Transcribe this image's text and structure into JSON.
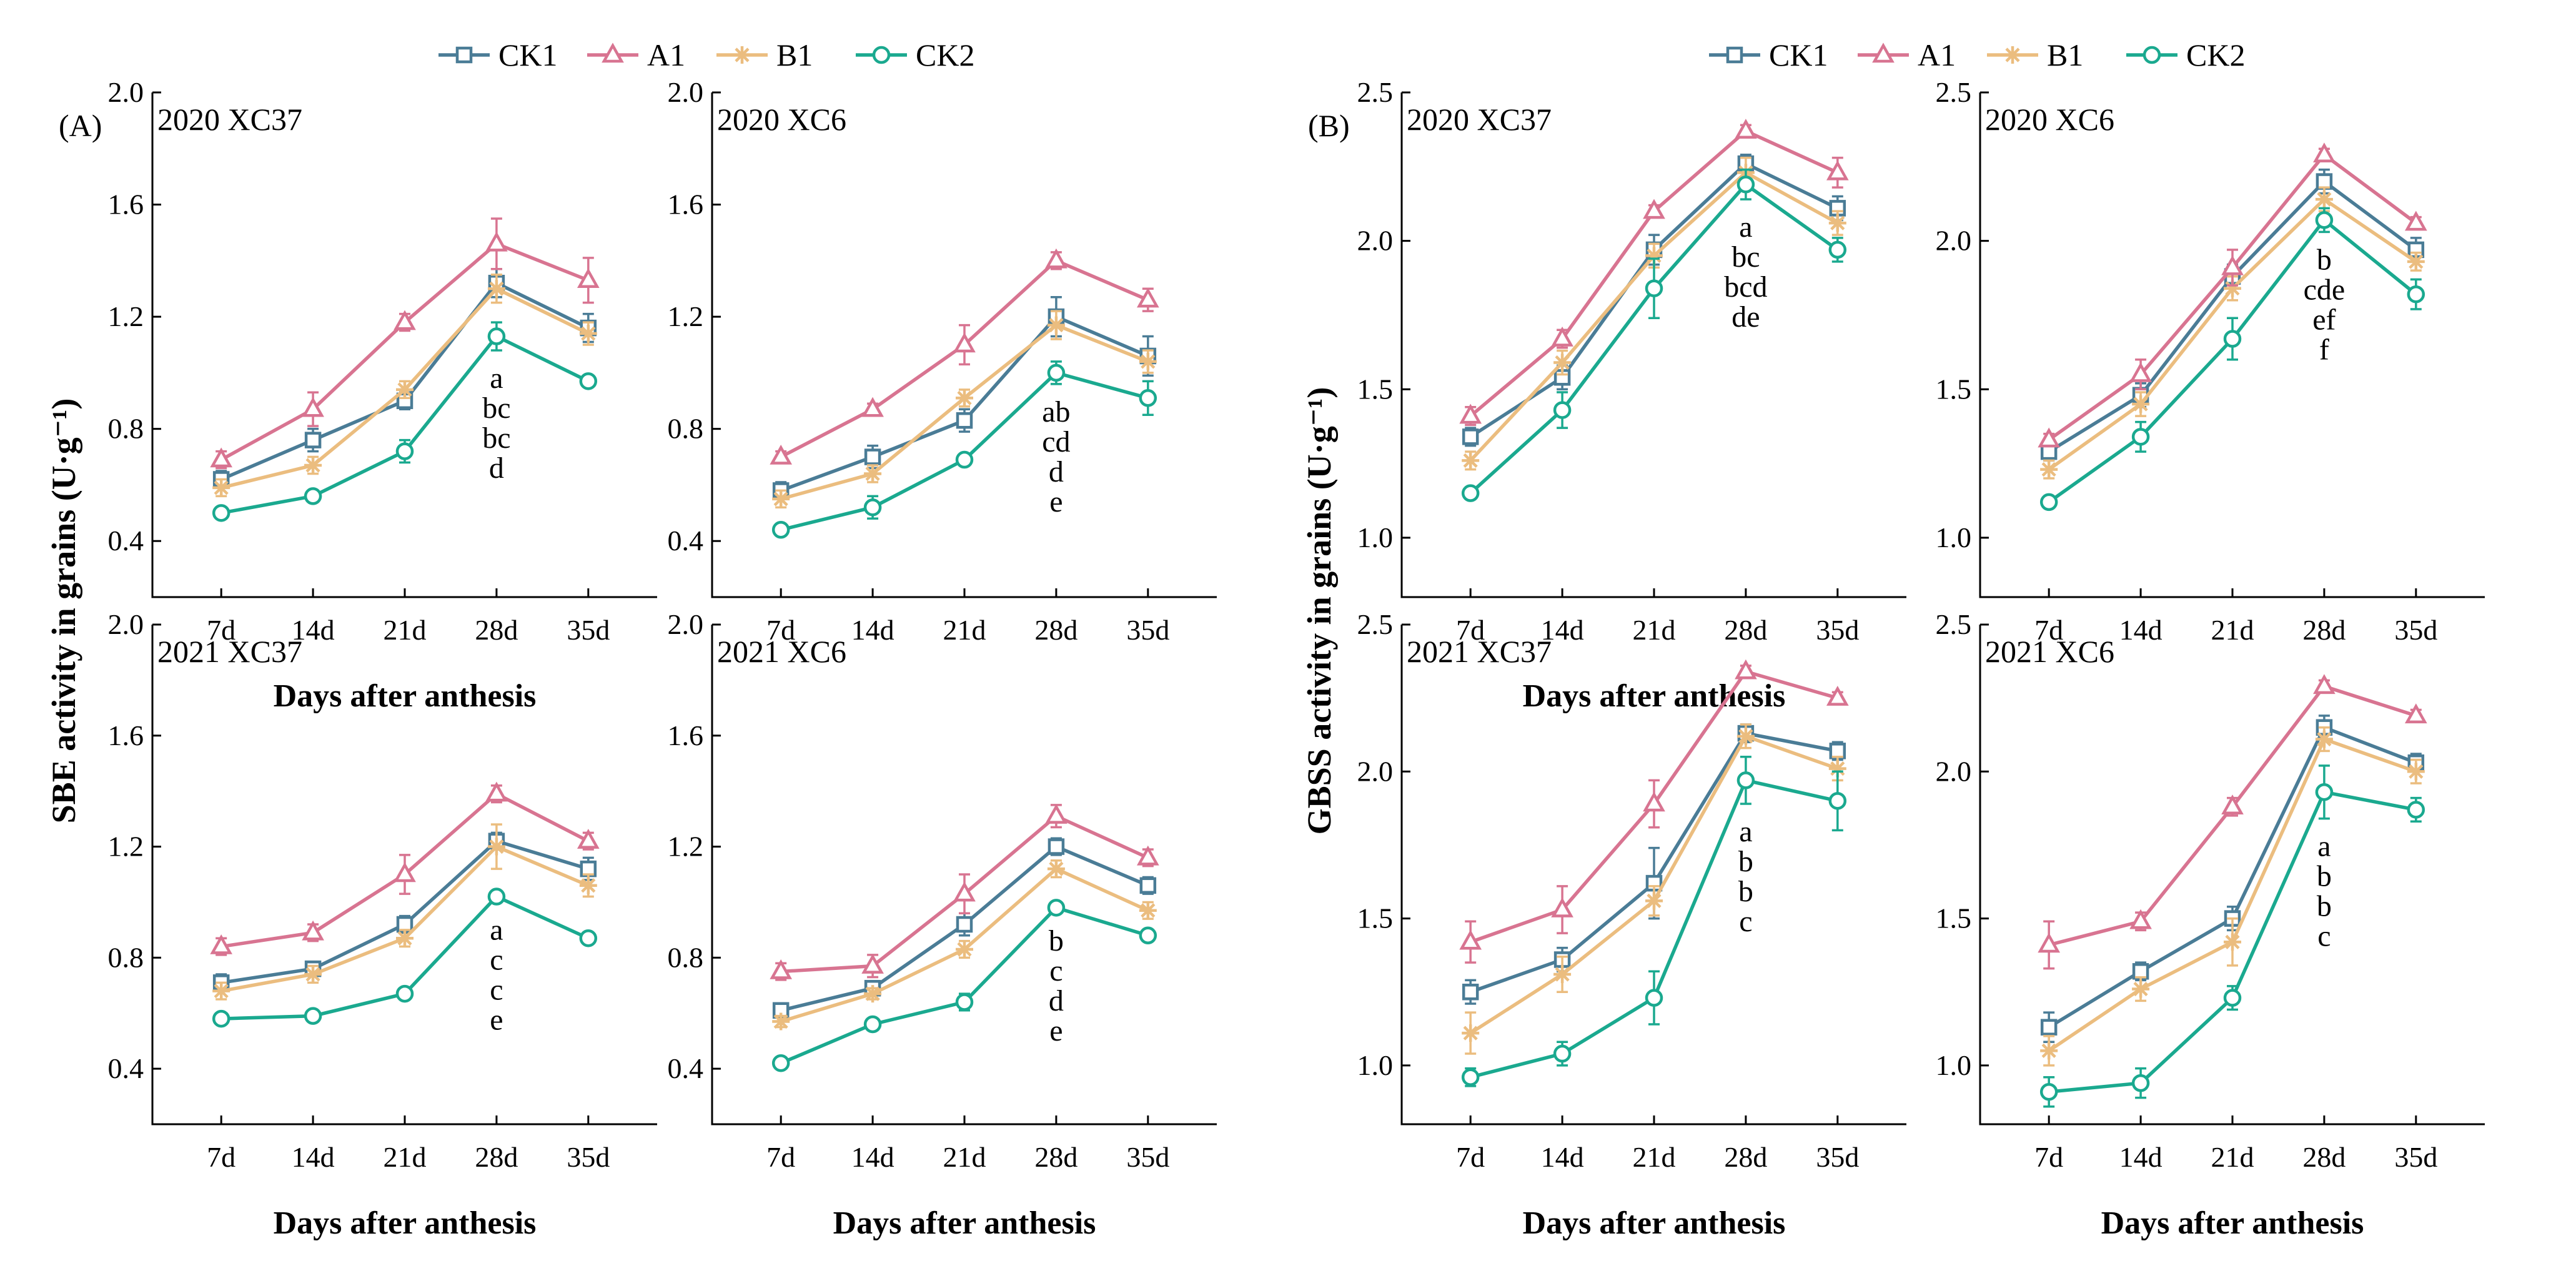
{
  "colors": {
    "CK1": "#4a7c96",
    "A1": "#d87491",
    "B1": "#ebbd7f",
    "CK2": "#1aa98f"
  },
  "legend": [
    "CK1",
    "A1",
    "B1",
    "CK2"
  ],
  "chart_data": [
    {
      "figure": "A",
      "type": "line",
      "title": "2020 XC37",
      "panel_label": "(A)",
      "ylabel": "SBE activity in grains (U·g⁻¹)",
      "xlabel": "Days after anthesis",
      "categories": [
        "7d",
        "14d",
        "21d",
        "28d",
        "35d"
      ],
      "ylim": [
        0.2,
        2.0
      ],
      "yticks": [
        "0.4",
        "0.8",
        "1.2",
        "1.6",
        "2.0"
      ],
      "series": [
        {
          "name": "CK1",
          "values": [
            0.62,
            0.76,
            0.9,
            1.32,
            1.16
          ],
          "err": [
            0.03,
            0.04,
            0.03,
            0.05,
            0.05
          ]
        },
        {
          "name": "A1",
          "values": [
            0.69,
            0.87,
            1.18,
            1.46,
            1.33
          ],
          "err": [
            0.03,
            0.06,
            0.03,
            0.09,
            0.08
          ]
        },
        {
          "name": "B1",
          "values": [
            0.59,
            0.67,
            0.94,
            1.3,
            1.14
          ],
          "err": [
            0.03,
            0.03,
            0.03,
            0.05,
            0.04
          ]
        },
        {
          "name": "CK2",
          "values": [
            0.5,
            0.56,
            0.72,
            1.13,
            0.97
          ],
          "err": [
            0.02,
            0.02,
            0.04,
            0.05,
            0.02
          ]
        }
      ],
      "letters": {
        "category": "28d",
        "labels": [
          "a",
          "bc",
          "bc",
          "d"
        ]
      }
    },
    {
      "figure": "A",
      "type": "line",
      "title": "2020 XC6",
      "categories": [
        "7d",
        "14d",
        "21d",
        "28d",
        "35d"
      ],
      "ylim": [
        0.2,
        2.0
      ],
      "yticks": [
        "0.4",
        "0.8",
        "1.2",
        "1.6",
        "2.0"
      ],
      "series": [
        {
          "name": "CK1",
          "values": [
            0.58,
            0.7,
            0.83,
            1.2,
            1.06
          ],
          "err": [
            0.03,
            0.04,
            0.04,
            0.07,
            0.07
          ]
        },
        {
          "name": "A1",
          "values": [
            0.7,
            0.87,
            1.1,
            1.4,
            1.26
          ],
          "err": [
            0.02,
            0.02,
            0.07,
            0.03,
            0.04
          ]
        },
        {
          "name": "B1",
          "values": [
            0.55,
            0.64,
            0.91,
            1.17,
            1.04
          ],
          "err": [
            0.03,
            0.03,
            0.03,
            0.05,
            0.04
          ]
        },
        {
          "name": "CK2",
          "values": [
            0.44,
            0.52,
            0.69,
            1.0,
            0.91
          ],
          "err": [
            0.02,
            0.04,
            0.02,
            0.04,
            0.06
          ]
        }
      ],
      "letters": {
        "category": "28d",
        "labels": [
          "ab",
          "cd",
          "d",
          "e"
        ]
      }
    },
    {
      "figure": "A",
      "type": "line",
      "title": "2021 XC37",
      "ylabel": "SBE activity in grains (U·g⁻¹)",
      "xlabel": "Days after anthesis",
      "categories": [
        "7d",
        "14d",
        "21d",
        "28d",
        "35d"
      ],
      "ylim": [
        0.2,
        2.0
      ],
      "yticks": [
        "0.4",
        "0.8",
        "1.2",
        "1.6",
        "2.0"
      ],
      "series": [
        {
          "name": "CK1",
          "values": [
            0.71,
            0.76,
            0.92,
            1.22,
            1.12
          ],
          "err": [
            0.03,
            0.02,
            0.03,
            0.03,
            0.04
          ]
        },
        {
          "name": "A1",
          "values": [
            0.84,
            0.89,
            1.1,
            1.39,
            1.22
          ],
          "err": [
            0.03,
            0.03,
            0.07,
            0.03,
            0.03
          ]
        },
        {
          "name": "B1",
          "values": [
            0.68,
            0.74,
            0.87,
            1.2,
            1.06
          ],
          "err": [
            0.03,
            0.03,
            0.03,
            0.08,
            0.04
          ]
        },
        {
          "name": "CK2",
          "values": [
            0.58,
            0.59,
            0.67,
            1.02,
            0.87
          ],
          "err": [
            0.02,
            0.02,
            0.02,
            0.02,
            0.02
          ]
        }
      ],
      "letters": {
        "category": "28d",
        "labels": [
          "a",
          "c",
          "c",
          "e"
        ]
      }
    },
    {
      "figure": "A",
      "type": "line",
      "title": "2021 XC6",
      "xlabel": "Days after anthesis",
      "categories": [
        "7d",
        "14d",
        "21d",
        "28d",
        "35d"
      ],
      "ylim": [
        0.2,
        2.0
      ],
      "yticks": [
        "0.4",
        "0.8",
        "1.2",
        "1.6",
        "2.0"
      ],
      "series": [
        {
          "name": "CK1",
          "values": [
            0.61,
            0.69,
            0.92,
            1.2,
            1.06
          ],
          "err": [
            0.02,
            0.02,
            0.04,
            0.03,
            0.03
          ]
        },
        {
          "name": "A1",
          "values": [
            0.75,
            0.77,
            1.03,
            1.31,
            1.16
          ],
          "err": [
            0.03,
            0.04,
            0.07,
            0.04,
            0.03
          ]
        },
        {
          "name": "B1",
          "values": [
            0.57,
            0.67,
            0.83,
            1.12,
            0.97
          ],
          "err": [
            0.02,
            0.02,
            0.03,
            0.03,
            0.03
          ]
        },
        {
          "name": "CK2",
          "values": [
            0.42,
            0.56,
            0.64,
            0.98,
            0.88
          ],
          "err": [
            0.02,
            0.02,
            0.03,
            0.02,
            0.02
          ]
        }
      ],
      "letters": {
        "category": "28d",
        "labels": [
          "b",
          "c",
          "d",
          "e"
        ]
      }
    },
    {
      "figure": "B",
      "type": "line",
      "title": "2020 XC37",
      "panel_label": "(B)",
      "ylabel": "GBSS activity in grains (U·g⁻¹)",
      "xlabel": "Days after anthesis",
      "categories": [
        "7d",
        "14d",
        "21d",
        "28d",
        "35d"
      ],
      "ylim": [
        0.8,
        2.5
      ],
      "yticks": [
        "1.0",
        "1.5",
        "2.0",
        "2.5"
      ],
      "series": [
        {
          "name": "CK1",
          "values": [
            1.34,
            1.54,
            1.97,
            2.26,
            2.11
          ],
          "err": [
            0.03,
            0.04,
            0.05,
            0.03,
            0.04
          ]
        },
        {
          "name": "A1",
          "values": [
            1.41,
            1.67,
            2.1,
            2.37,
            2.23
          ],
          "err": [
            0.03,
            0.03,
            0.02,
            0.02,
            0.05
          ]
        },
        {
          "name": "B1",
          "values": [
            1.26,
            1.59,
            1.95,
            2.23,
            2.06
          ],
          "err": [
            0.03,
            0.04,
            0.04,
            0.05,
            0.04
          ]
        },
        {
          "name": "CK2",
          "values": [
            1.15,
            1.43,
            1.84,
            2.19,
            1.97
          ],
          "err": [
            0.02,
            0.06,
            0.1,
            0.05,
            0.04
          ]
        }
      ],
      "letters": {
        "category": "28d",
        "labels": [
          "a",
          "bc",
          "bcd",
          "de"
        ]
      }
    },
    {
      "figure": "B",
      "type": "line",
      "title": "2020 XC6",
      "categories": [
        "7d",
        "14d",
        "21d",
        "28d",
        "35d"
      ],
      "ylim": [
        0.8,
        2.5
      ],
      "yticks": [
        "1.0",
        "1.5",
        "2.0",
        "2.5"
      ],
      "series": [
        {
          "name": "CK1",
          "values": [
            1.29,
            1.48,
            1.88,
            2.2,
            1.97
          ],
          "err": [
            0.03,
            0.04,
            0.04,
            0.04,
            0.04
          ]
        },
        {
          "name": "A1",
          "values": [
            1.33,
            1.55,
            1.91,
            2.29,
            2.06
          ],
          "err": [
            0.02,
            0.05,
            0.06,
            0.02,
            0.02
          ]
        },
        {
          "name": "B1",
          "values": [
            1.23,
            1.45,
            1.84,
            2.14,
            1.93
          ],
          "err": [
            0.03,
            0.04,
            0.04,
            0.04,
            0.03
          ]
        },
        {
          "name": "CK2",
          "values": [
            1.12,
            1.34,
            1.67,
            2.07,
            1.82
          ],
          "err": [
            0.02,
            0.05,
            0.07,
            0.04,
            0.05
          ]
        }
      ],
      "letters": {
        "category": "28d",
        "labels": [
          "b",
          "cde",
          "ef",
          "f"
        ]
      }
    },
    {
      "figure": "B",
      "type": "line",
      "title": "2021 XC37",
      "ylabel": "GBSS activity in grains (U·g⁻¹)",
      "xlabel": "Days after anthesis",
      "categories": [
        "7d",
        "14d",
        "21d",
        "28d",
        "35d"
      ],
      "ylim": [
        0.8,
        2.5
      ],
      "yticks": [
        "1.0",
        "1.5",
        "2.0",
        "2.5"
      ],
      "series": [
        {
          "name": "CK1",
          "values": [
            1.25,
            1.36,
            1.62,
            2.13,
            2.07
          ],
          "err": [
            0.04,
            0.04,
            0.12,
            0.03,
            0.03
          ]
        },
        {
          "name": "A1",
          "values": [
            1.42,
            1.53,
            1.89,
            2.34,
            2.25
          ],
          "err": [
            0.07,
            0.08,
            0.08,
            0.02,
            0.02
          ]
        },
        {
          "name": "B1",
          "values": [
            1.11,
            1.31,
            1.56,
            2.12,
            2.01
          ],
          "err": [
            0.07,
            0.06,
            0.05,
            0.04,
            0.04
          ]
        },
        {
          "name": "CK2",
          "values": [
            0.96,
            1.04,
            1.23,
            1.97,
            1.9
          ],
          "err": [
            0.03,
            0.04,
            0.09,
            0.08,
            0.1
          ]
        }
      ],
      "letters": {
        "category": "28d",
        "labels": [
          "a",
          "b",
          "b",
          "c"
        ]
      }
    },
    {
      "figure": "B",
      "type": "line",
      "title": "2021 XC6",
      "xlabel": "Days after anthesis",
      "categories": [
        "7d",
        "14d",
        "21d",
        "28d",
        "35d"
      ],
      "ylim": [
        0.8,
        2.5
      ],
      "yticks": [
        "1.0",
        "1.5",
        "2.0",
        "2.5"
      ],
      "series": [
        {
          "name": "CK1",
          "values": [
            1.13,
            1.32,
            1.5,
            2.15,
            2.03
          ],
          "err": [
            0.05,
            0.03,
            0.04,
            0.04,
            0.03
          ]
        },
        {
          "name": "A1",
          "values": [
            1.41,
            1.49,
            1.88,
            2.29,
            2.19
          ],
          "err": [
            0.08,
            0.03,
            0.03,
            0.02,
            0.02
          ]
        },
        {
          "name": "B1",
          "values": [
            1.05,
            1.26,
            1.42,
            2.11,
            2.0
          ],
          "err": [
            0.05,
            0.04,
            0.08,
            0.04,
            0.04
          ]
        },
        {
          "name": "CK2",
          "values": [
            0.91,
            0.94,
            1.23,
            1.93,
            1.87
          ],
          "err": [
            0.05,
            0.05,
            0.04,
            0.09,
            0.04
          ]
        }
      ],
      "letters": {
        "category": "28d",
        "labels": [
          "a",
          "b",
          "b",
          "c"
        ]
      }
    }
  ]
}
